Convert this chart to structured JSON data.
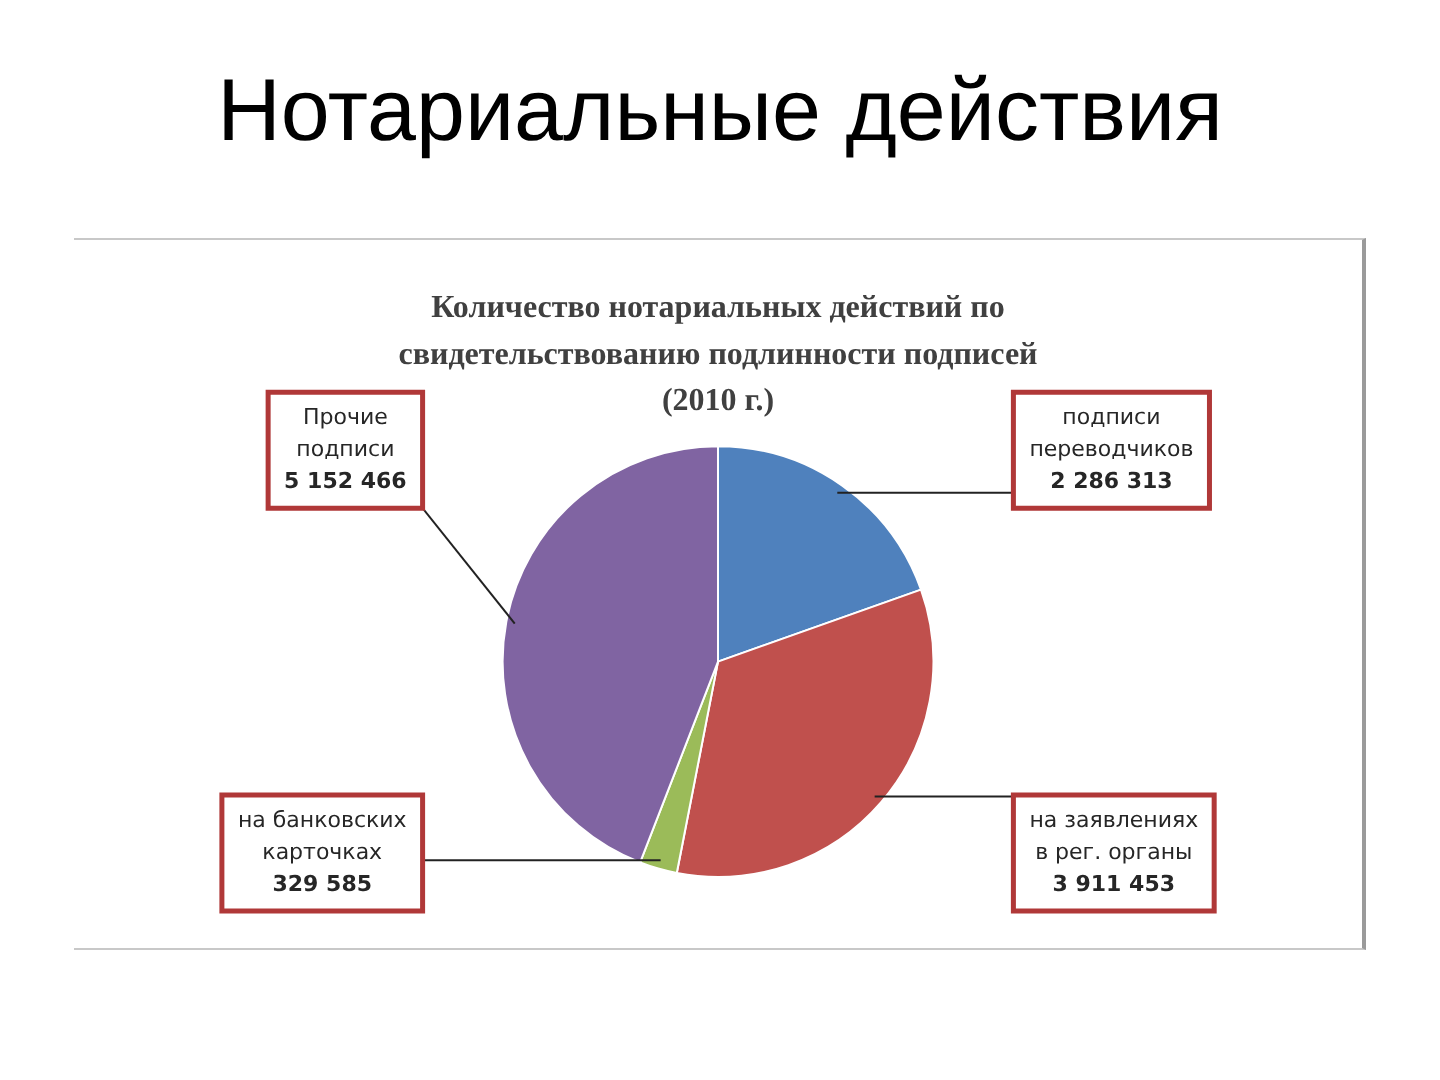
{
  "chart_data": {
    "type": "pie",
    "title": "Нотариальные действия",
    "subtitle": "Количество нотариальных действий по свидетельствованию подлинности подписей (2010 г.)",
    "categories": [
      "подписи переводчиков",
      "на заявлениях в рег. органы",
      "на банковских карточках",
      "Прочие подписи"
    ],
    "values": [
      2286313,
      3911453,
      329585,
      5152466
    ],
    "colors": [
      "#4f81bd",
      "#c0504d",
      "#9bbb59",
      "#8064a2"
    ],
    "value_labels": [
      "2 286 313",
      "3 911 453",
      "329 585",
      "5 152 466"
    ],
    "legend": false
  }
}
